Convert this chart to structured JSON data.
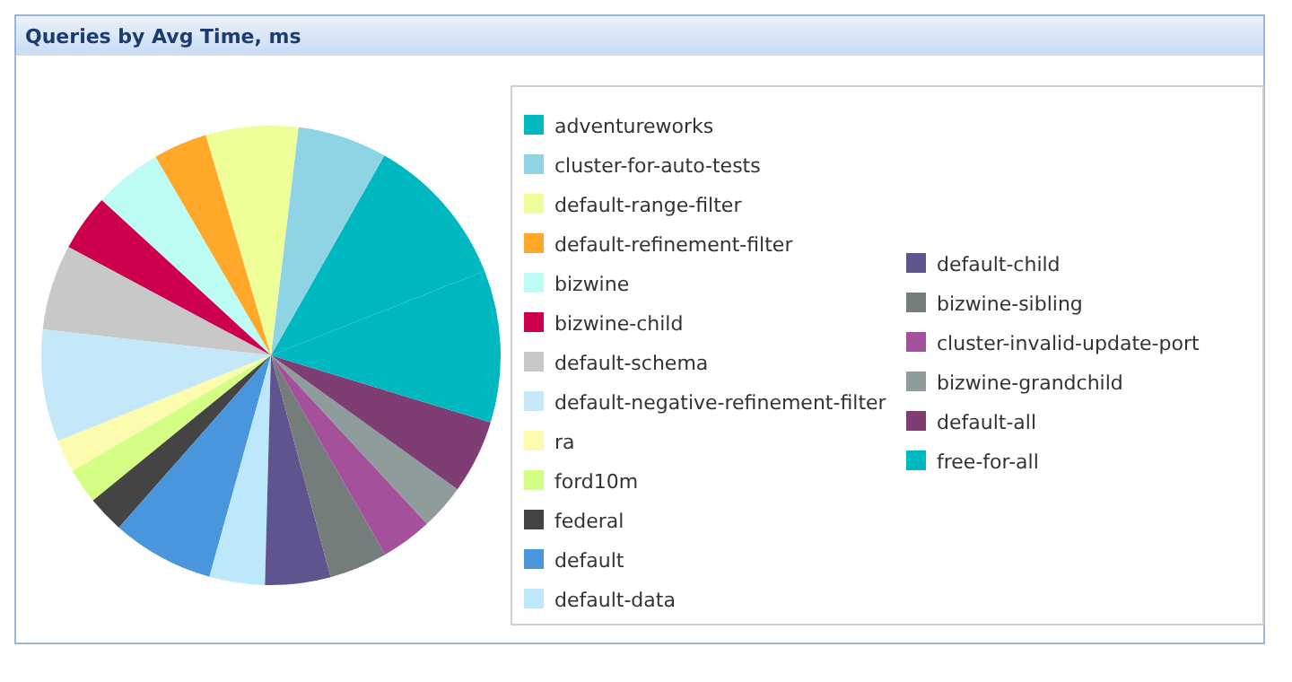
{
  "chart_data": {
    "type": "pie",
    "title": "Queries by Avg Time, ms",
    "legend": "right",
    "categories": [
      "adventureworks",
      "cluster-for-auto-tests",
      "default-range-filter",
      "default-refinement-filter",
      "bizwine",
      "bizwine-child",
      "default-schema",
      "default-negative-refinement-filter",
      "ra",
      "ford10m",
      "federal",
      "default",
      "default-data",
      "default-child",
      "bizwine-sibling",
      "cluster-invalid-update-port",
      "bizwine-grandchild",
      "default-all",
      "free-for-all"
    ],
    "values": [
      10.8,
      6.3,
      6.5,
      3.8,
      4.8,
      4.0,
      6.0,
      7.9,
      2.3,
      2.5,
      2.6,
      7.2,
      3.9,
      4.6,
      4.1,
      3.6,
      3.2,
      5.2,
      10.7
    ],
    "colors": [
      "#00b8c0",
      "#8fd4e4",
      "#eeff9a",
      "#ffa82a",
      "#bdfcf4",
      "#cc004c",
      "#c8c8c8",
      "#c4e8f8",
      "#fdfcae",
      "#d4fe84",
      "#444444",
      "#4a96dc",
      "#bde8fc",
      "#60548f",
      "#747d7c",
      "#a5509a",
      "#8f9c9c",
      "#7f3e73",
      "#00b8c0"
    ]
  }
}
